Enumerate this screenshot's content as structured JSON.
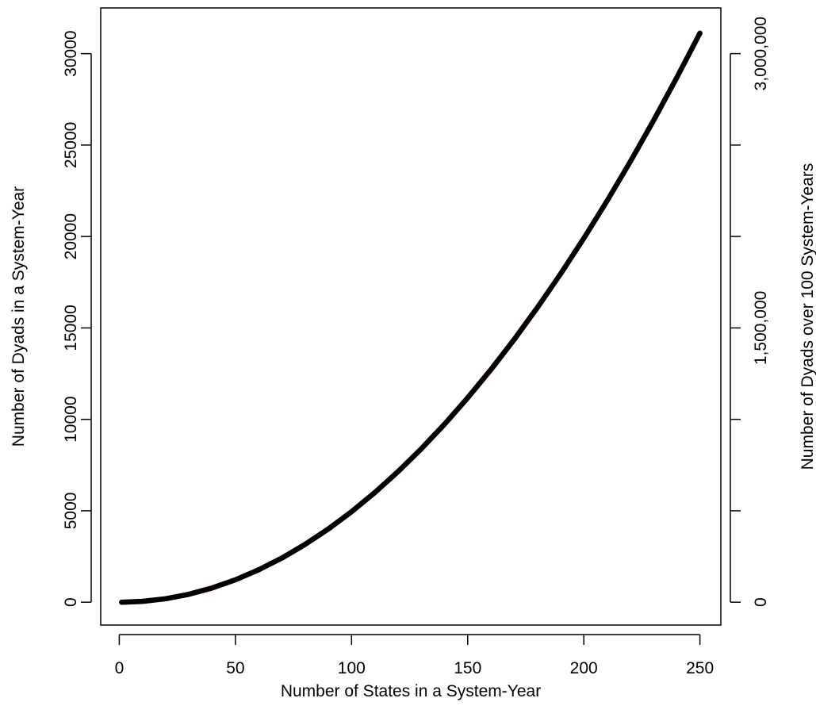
{
  "chart_data": {
    "type": "line",
    "title": "",
    "xlabel": "Number of States in a System-Year",
    "ylabel": "Number of Dyads in a System-Year",
    "y2label": "Number of Dyads over 100 System-Years",
    "xlim": [
      -8,
      259
    ],
    "ylim": [
      -1250,
      32500
    ],
    "y2lim": [
      -125000,
      3250000
    ],
    "xticks": [
      0,
      50,
      100,
      150,
      200,
      250
    ],
    "yticks": [
      0,
      5000,
      10000,
      15000,
      20000,
      25000,
      30000
    ],
    "yticklabels": [
      "0",
      "5000",
      "10000",
      "15000",
      "20000",
      "25000",
      "30000"
    ],
    "y2ticks": [
      0,
      500000,
      1000000,
      1500000,
      2000000,
      2500000,
      3000000
    ],
    "y2ticklabels": [
      "0",
      "",
      "",
      "1,500,000",
      "",
      "",
      "3,000,000"
    ],
    "grid": false,
    "series": [
      {
        "axis": "left",
        "color": "#000000",
        "formula": "n*(n-1)/2",
        "x": [
          1,
          10,
          20,
          30,
          40,
          50,
          60,
          70,
          80,
          90,
          100,
          110,
          120,
          130,
          140,
          150,
          160,
          170,
          180,
          190,
          200,
          210,
          220,
          230,
          240,
          250
        ],
        "y": [
          0,
          45,
          190,
          435,
          780,
          1225,
          1770,
          2415,
          3160,
          4005,
          4950,
          5995,
          7140,
          8385,
          9730,
          11175,
          12720,
          14365,
          16110,
          17955,
          19900,
          21945,
          24090,
          26335,
          28680,
          31125
        ]
      },
      {
        "axis": "right",
        "color": "#ff2a00",
        "formula": "100*n*(n-1)/2",
        "x": [
          1,
          10,
          20,
          30,
          40,
          50,
          60,
          70,
          80,
          90,
          100,
          110,
          120,
          130,
          140,
          150,
          160,
          170,
          180
        ],
        "y": [
          0,
          4500,
          19000,
          43500,
          78000,
          122500,
          177000,
          241500,
          316000,
          400500,
          495000,
          599500,
          714000,
          838500,
          973000,
          1117500,
          1272000,
          1436500,
          1611000
        ]
      }
    ]
  }
}
